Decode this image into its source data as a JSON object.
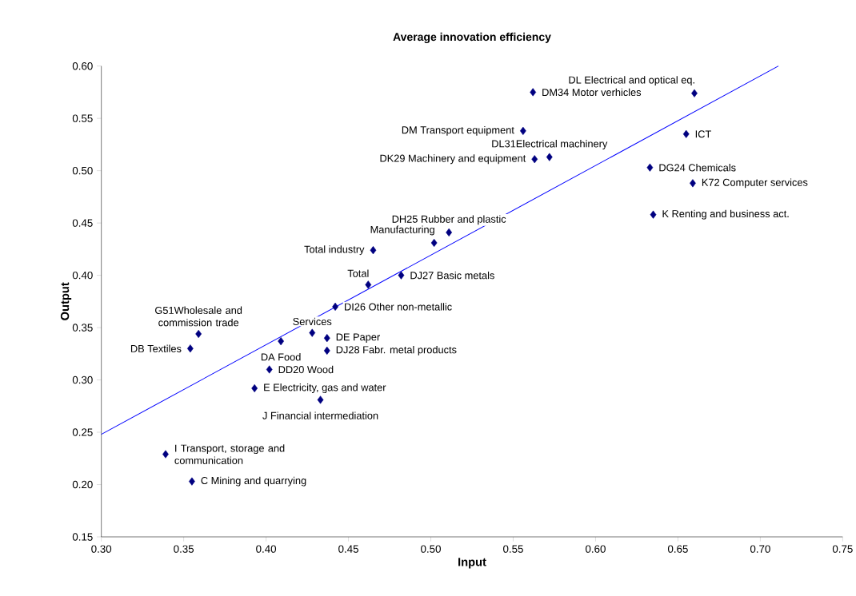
{
  "chart_data": {
    "type": "scatter",
    "title": "Average innovation efficiency",
    "xlabel": "Input",
    "ylabel": "Output",
    "xlim": [
      0.3,
      0.75
    ],
    "ylim": [
      0.15,
      0.6
    ],
    "xticks": [
      {
        "value": 0.3,
        "label": "0.30"
      },
      {
        "value": 0.35,
        "label": "0.35"
      },
      {
        "value": 0.4,
        "label": "0.40"
      },
      {
        "value": 0.45,
        "label": "0.45"
      },
      {
        "value": 0.5,
        "label": "0.50"
      },
      {
        "value": 0.55,
        "label": "0.55"
      },
      {
        "value": 0.6,
        "label": "0.60"
      },
      {
        "value": 0.65,
        "label": "0.65"
      },
      {
        "value": 0.7,
        "label": "0.70"
      },
      {
        "value": 0.75,
        "label": "0.75"
      }
    ],
    "yticks": [
      {
        "value": 0.15,
        "label": "0.15"
      },
      {
        "value": 0.2,
        "label": "0.20"
      },
      {
        "value": 0.25,
        "label": "0.25"
      },
      {
        "value": 0.3,
        "label": "0.30"
      },
      {
        "value": 0.35,
        "label": "0.35"
      },
      {
        "value": 0.4,
        "label": "0.40"
      },
      {
        "value": 0.45,
        "label": "0.45"
      },
      {
        "value": 0.5,
        "label": "0.50"
      },
      {
        "value": 0.55,
        "label": "0.55"
      },
      {
        "value": 0.6,
        "label": "0.60"
      }
    ],
    "grid": false,
    "legend": false,
    "marker": "diamond",
    "series": [
      {
        "color": "#000080",
        "x": [
          0.562,
          0.66,
          0.556,
          0.563,
          0.572,
          0.655,
          0.633,
          0.659,
          0.635,
          0.511,
          0.502,
          0.465,
          0.462,
          0.482,
          0.442,
          0.359,
          0.354,
          0.428,
          0.409,
          0.437,
          0.437,
          0.402,
          0.393,
          0.433,
          0.339,
          0.355
        ],
        "values": [
          0.575,
          0.574,
          0.538,
          0.511,
          0.513,
          0.535,
          0.503,
          0.488,
          0.458,
          0.441,
          0.431,
          0.424,
          0.391,
          0.4,
          0.37,
          0.344,
          0.33,
          0.345,
          0.337,
          0.34,
          0.328,
          0.31,
          0.292,
          0.281,
          0.229,
          0.203
        ]
      },
      {
        "type": "line",
        "color": "#0000ff",
        "marker": "none",
        "line_style": "solid",
        "x": [
          0.3,
          0.711
        ],
        "values": [
          0.248,
          0.6
        ]
      }
    ],
    "annotations": [
      {
        "text": "DM34 Motor verhicles",
        "x": 0.562,
        "y": 0.575
      },
      {
        "text": "DL Electrical and optical eq.",
        "x": 0.66,
        "y": 0.574
      },
      {
        "text": "DM Transport equipment",
        "x": 0.556,
        "y": 0.538
      },
      {
        "text": "DK29 Machinery and equipment",
        "x": 0.563,
        "y": 0.511
      },
      {
        "text": "DL31Electrical machinery",
        "x": 0.572,
        "y": 0.513
      },
      {
        "text": "ICT",
        "x": 0.655,
        "y": 0.535
      },
      {
        "text": "DG24 Chemicals",
        "x": 0.633,
        "y": 0.503
      },
      {
        "text": "K72 Computer services",
        "x": 0.659,
        "y": 0.488
      },
      {
        "text": "K Renting and business act.",
        "x": 0.635,
        "y": 0.458
      },
      {
        "text": "DH25 Rubber and plastic",
        "x": 0.511,
        "y": 0.441
      },
      {
        "text": "Manufacturing",
        "x": 0.502,
        "y": 0.431
      },
      {
        "text": "Total industry",
        "x": 0.465,
        "y": 0.424
      },
      {
        "text": "Total",
        "x": 0.462,
        "y": 0.391
      },
      {
        "text": "DJ27 Basic metals",
        "x": 0.482,
        "y": 0.4
      },
      {
        "text": "DI26 Other non-metallic",
        "x": 0.442,
        "y": 0.37
      },
      {
        "text": "G51Wholesale and commission trade",
        "x": 0.359,
        "y": 0.344
      },
      {
        "text": "DB Textiles",
        "x": 0.354,
        "y": 0.33
      },
      {
        "text": "Services",
        "x": 0.428,
        "y": 0.345
      },
      {
        "text": "DA Food",
        "x": 0.409,
        "y": 0.337
      },
      {
        "text": "DE Paper",
        "x": 0.437,
        "y": 0.34
      },
      {
        "text": "DJ28 Fabr. metal products",
        "x": 0.437,
        "y": 0.328
      },
      {
        "text": "DD20 Wood",
        "x": 0.402,
        "y": 0.31
      },
      {
        "text": "E Electricity, gas and water",
        "x": 0.393,
        "y": 0.292
      },
      {
        "text": "J Financial intermediation",
        "x": 0.433,
        "y": 0.281
      },
      {
        "text": "I Transport, storage and communication",
        "x": 0.339,
        "y": 0.229
      },
      {
        "text": "C Mining and quarrying",
        "x": 0.355,
        "y": 0.203
      }
    ]
  }
}
